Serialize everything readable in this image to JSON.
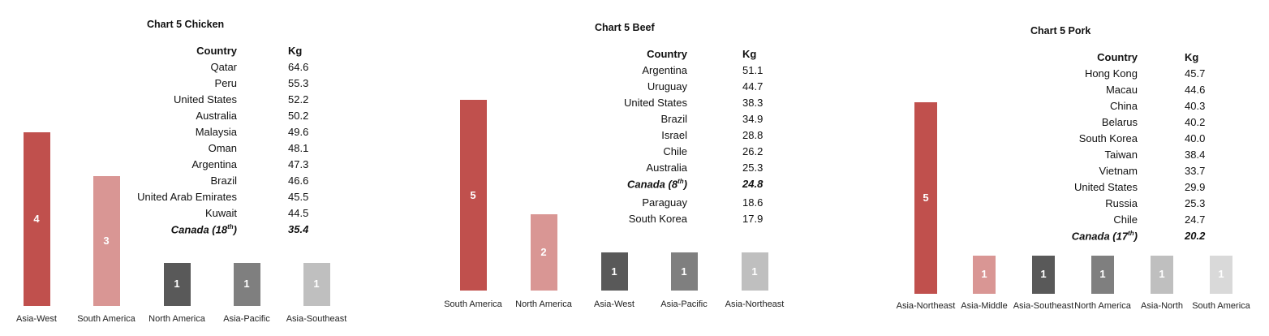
{
  "panels": [
    {
      "title": "Chart 5 Chicken",
      "table": {
        "header_country": "Country",
        "header_kg": "Kg",
        "rows": [
          {
            "country": "Qatar",
            "kg": "64.6"
          },
          {
            "country": "Peru",
            "kg": "55.3"
          },
          {
            "country": "United States",
            "kg": "52.2"
          },
          {
            "country": "Australia",
            "kg": "50.2"
          },
          {
            "country": "Malaysia",
            "kg": "49.6"
          },
          {
            "country": "Oman",
            "kg": "48.1"
          },
          {
            "country": "Argentina",
            "kg": "47.3"
          },
          {
            "country": "Brazil",
            "kg": "46.6"
          },
          {
            "country": "United Arab Emirates",
            "kg": "45.5"
          },
          {
            "country": "Kuwait",
            "kg": "44.5"
          }
        ],
        "canada": {
          "label": "Canada (18",
          "rank_suffix": "th",
          "close": ")",
          "kg": "35.4"
        }
      }
    },
    {
      "title": "Chart 5 Beef",
      "table": {
        "header_country": "Country",
        "header_kg": "Kg",
        "rows": [
          {
            "country": "Argentina",
            "kg": "51.1"
          },
          {
            "country": "Uruguay",
            "kg": "44.7"
          },
          {
            "country": "United States",
            "kg": "38.3"
          },
          {
            "country": "Brazil",
            "kg": "34.9"
          },
          {
            "country": "Israel",
            "kg": "28.8"
          },
          {
            "country": "Chile",
            "kg": "26.2"
          },
          {
            "country": "Australia",
            "kg": "25.3"
          }
        ],
        "canada": {
          "label": "Canada (8",
          "rank_suffix": "th",
          "close": ")",
          "kg": "24.8"
        },
        "rows_after": [
          {
            "country": "Paraguay",
            "kg": "18.6"
          },
          {
            "country": "South Korea",
            "kg": "17.9"
          }
        ]
      }
    },
    {
      "title": "Chart 5 Pork",
      "table": {
        "header_country": "Country",
        "header_kg": "Kg",
        "rows": [
          {
            "country": "Hong Kong",
            "kg": "45.7"
          },
          {
            "country": "Macau",
            "kg": "44.6"
          },
          {
            "country": "China",
            "kg": "40.3"
          },
          {
            "country": "Belarus",
            "kg": "40.2"
          },
          {
            "country": "South Korea",
            "kg": "40.0"
          },
          {
            "country": "Taiwan",
            "kg": "38.4"
          },
          {
            "country": "Vietnam",
            "kg": "33.7"
          },
          {
            "country": "United States",
            "kg": "29.9"
          },
          {
            "country": "Russia",
            "kg": "25.3"
          },
          {
            "country": "Chile",
            "kg": "24.7"
          }
        ],
        "canada": {
          "label": "Canada (17",
          "rank_suffix": "th",
          "close": ")",
          "kg": "20.2"
        }
      }
    }
  ],
  "chart_data": [
    {
      "type": "bar",
      "title": "Chart 5 Chicken",
      "categories": [
        "Asia-West",
        "South America",
        "North America",
        "Asia-Pacific",
        "Asia-Southeast"
      ],
      "values": [
        4,
        3,
        1,
        1,
        1
      ],
      "colors": [
        "#c0504d",
        "#d99694",
        "#595959",
        "#7f7f7f",
        "#bfbfbf"
      ]
    },
    {
      "type": "bar",
      "title": "Chart 5 Beef",
      "categories": [
        "South America",
        "North America",
        "Asia-West",
        "Asia-Pacific",
        "Asia-Northeast"
      ],
      "values": [
        5,
        2,
        1,
        1,
        1
      ],
      "colors": [
        "#c0504d",
        "#d99694",
        "#595959",
        "#7f7f7f",
        "#bfbfbf"
      ]
    },
    {
      "type": "bar",
      "title": "Chart 5 Pork",
      "categories": [
        "Asia-Northeast",
        "Asia-Middle",
        "Asia-Southeast",
        "North America",
        "Asia-North",
        "South America"
      ],
      "values": [
        5,
        1,
        1,
        1,
        1,
        1
      ],
      "colors": [
        "#c0504d",
        "#d99694",
        "#595959",
        "#7f7f7f",
        "#bfbfbf",
        "#d9d9d9"
      ]
    }
  ]
}
